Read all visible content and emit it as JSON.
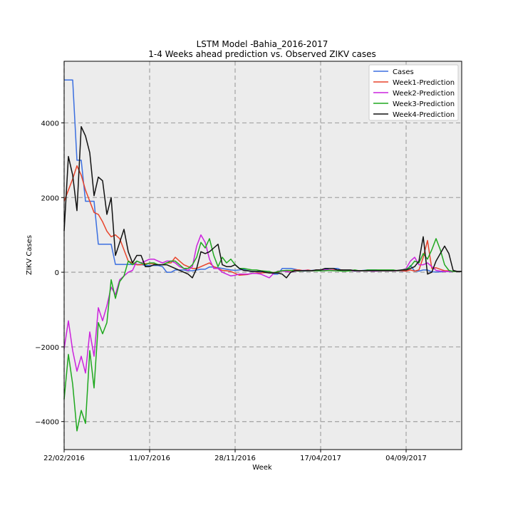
{
  "chart_data": {
    "type": "line",
    "title": "LSTM Model -Bahia_2016-2017",
    "subtitle": "1-4 Weeks ahead prediction vs. Observed ZIKV cases",
    "xlabel": "Week",
    "ylabel": "ZIKV Cases",
    "xlim": [
      0,
      93
    ],
    "ylim": [
      -4750,
      5650
    ],
    "x_ticks": [
      {
        "x": 0,
        "label": "22/02/2016"
      },
      {
        "x": 20,
        "label": "11/07/2016"
      },
      {
        "x": 40,
        "label": "28/11/2016"
      },
      {
        "x": 60,
        "label": "17/04/2017"
      },
      {
        "x": 80,
        "label": "04/09/2017"
      }
    ],
    "y_ticks": [
      -4000,
      -2000,
      0,
      2000,
      4000
    ],
    "grid": true,
    "legend_position": "top-right",
    "series": [
      {
        "name": "Cases",
        "color": "#3b6fe0",
        "values": [
          5150,
          5150,
          5150,
          3000,
          3000,
          1900,
          1900,
          1900,
          750,
          750,
          750,
          750,
          210,
          210,
          210,
          210,
          210,
          210,
          210,
          180,
          180,
          180,
          180,
          150,
          0,
          0,
          60,
          60,
          60,
          40,
          40,
          60,
          80,
          80,
          140,
          140,
          120,
          100,
          80,
          60,
          50,
          60,
          80,
          40,
          20,
          20,
          10,
          20,
          20,
          -50,
          -50,
          100,
          100,
          100,
          80,
          50,
          30,
          40,
          50,
          60,
          60,
          70,
          100,
          100,
          100,
          50,
          50,
          40,
          30,
          40,
          50,
          60,
          60,
          60,
          40,
          40,
          40,
          40,
          40,
          30,
          30,
          180,
          30,
          30,
          60,
          60,
          10,
          10,
          10,
          20,
          20,
          20,
          20,
          20
        ]
      },
      {
        "name": "Week1-Prediction",
        "color": "#e8442b",
        "values": [
          1900,
          2200,
          2500,
          2850,
          2600,
          2200,
          1900,
          1600,
          1550,
          1350,
          1100,
          950,
          1000,
          900,
          600,
          300,
          250,
          200,
          200,
          230,
          230,
          230,
          200,
          200,
          250,
          250,
          400,
          300,
          200,
          150,
          100,
          100,
          150,
          200,
          250,
          150,
          100,
          50,
          40,
          20,
          -30,
          -80,
          -70,
          -60,
          -30,
          -20,
          -20,
          -10,
          -10,
          -10,
          10,
          40,
          40,
          40,
          60,
          60,
          40,
          60,
          40,
          60,
          60,
          60,
          60,
          60,
          60,
          60,
          40,
          40,
          40,
          40,
          40,
          40,
          40,
          40,
          40,
          40,
          40,
          40,
          40,
          40,
          30,
          60,
          30,
          60,
          400,
          850,
          100,
          120,
          80,
          40,
          40,
          20,
          20,
          20
        ]
      },
      {
        "name": "Week2-Prediction",
        "color": "#cc22dd",
        "values": [
          -2050,
          -1300,
          -2100,
          -2650,
          -2250,
          -2700,
          -1600,
          -2250,
          -950,
          -1300,
          -900,
          -400,
          -600,
          -200,
          -100,
          0,
          50,
          300,
          250,
          300,
          350,
          350,
          300,
          250,
          300,
          300,
          250,
          150,
          100,
          50,
          150,
          700,
          1000,
          800,
          350,
          100,
          100,
          0,
          -50,
          -100,
          -80,
          -50,
          -50,
          -50,
          -30,
          -30,
          -50,
          -100,
          -150,
          -30,
          30,
          30,
          20,
          0,
          30,
          40,
          50,
          50,
          40,
          50,
          60,
          60,
          60,
          50,
          50,
          50,
          40,
          40,
          40,
          30,
          40,
          40,
          30,
          30,
          40,
          40,
          40,
          40,
          40,
          60,
          100,
          300,
          400,
          200,
          200,
          250,
          150,
          50,
          30,
          20,
          20,
          20,
          20,
          20
        ]
      },
      {
        "name": "Week3-Prediction",
        "color": "#1fa81f",
        "values": [
          -3400,
          -2200,
          -3000,
          -4250,
          -3700,
          -4050,
          -2100,
          -3100,
          -1350,
          -1650,
          -1350,
          -200,
          -700,
          -250,
          -100,
          300,
          200,
          300,
          250,
          200,
          250,
          250,
          200,
          200,
          250,
          300,
          300,
          200,
          100,
          100,
          200,
          400,
          800,
          650,
          900,
          450,
          150,
          400,
          250,
          350,
          200,
          100,
          100,
          80,
          60,
          60,
          40,
          30,
          20,
          -20,
          20,
          40,
          50,
          50,
          40,
          30,
          40,
          40,
          40,
          40,
          40,
          40,
          50,
          40,
          40,
          30,
          30,
          40,
          60,
          40,
          40,
          60,
          60,
          60,
          60,
          60,
          60,
          60,
          40,
          60,
          80,
          150,
          300,
          250,
          500,
          350,
          600,
          900,
          600,
          200,
          50,
          20,
          20,
          20
        ]
      },
      {
        "name": "Week4-Prediction",
        "color": "#111111",
        "values": [
          1100,
          3100,
          2600,
          1650,
          3900,
          3650,
          3200,
          2050,
          2550,
          2450,
          1550,
          2000,
          450,
          800,
          1150,
          550,
          250,
          450,
          450,
          150,
          150,
          200,
          200,
          200,
          200,
          150,
          100,
          50,
          0,
          -50,
          -150,
          100,
          550,
          500,
          550,
          650,
          750,
          200,
          150,
          150,
          200,
          100,
          50,
          40,
          20,
          20,
          30,
          0,
          -20,
          -20,
          -20,
          -50,
          -150,
          0,
          40,
          40,
          40,
          40,
          40,
          60,
          60,
          100,
          100,
          100,
          60,
          60,
          60,
          60,
          40,
          40,
          40,
          40,
          40,
          40,
          40,
          40,
          40,
          40,
          50,
          60,
          60,
          100,
          150,
          300,
          950,
          -50,
          0,
          300,
          500,
          700,
          500,
          50,
          20,
          20
        ]
      }
    ]
  }
}
